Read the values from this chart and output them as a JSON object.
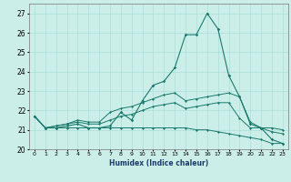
{
  "xlabel": "Humidex (Indice chaleur)",
  "x": [
    0,
    1,
    2,
    3,
    4,
    5,
    6,
    7,
    8,
    9,
    10,
    11,
    12,
    13,
    14,
    15,
    16,
    17,
    18,
    19,
    20,
    21,
    22,
    23
  ],
  "humidex_line": [
    21.7,
    21.1,
    21.1,
    21.2,
    21.3,
    21.1,
    21.1,
    21.2,
    21.9,
    21.5,
    22.5,
    23.3,
    23.5,
    24.2,
    25.9,
    25.9,
    27.0,
    26.2,
    23.8,
    22.7,
    21.3,
    21.1,
    20.5,
    20.3
  ],
  "tmax_line": [
    21.7,
    21.1,
    21.2,
    21.3,
    21.5,
    21.4,
    21.4,
    21.9,
    22.1,
    22.2,
    22.4,
    22.6,
    22.8,
    22.9,
    22.5,
    22.6,
    22.7,
    22.8,
    22.9,
    22.7,
    21.4,
    21.1,
    21.1,
    21.0
  ],
  "tmin_line": [
    21.7,
    21.1,
    21.1,
    21.1,
    21.1,
    21.1,
    21.1,
    21.1,
    21.1,
    21.1,
    21.1,
    21.1,
    21.1,
    21.1,
    21.1,
    21.0,
    21.0,
    20.9,
    20.8,
    20.7,
    20.6,
    20.5,
    20.3,
    20.3
  ],
  "tmean_line": [
    21.7,
    21.1,
    21.2,
    21.3,
    21.4,
    21.3,
    21.3,
    21.5,
    21.7,
    21.8,
    22.0,
    22.2,
    22.3,
    22.4,
    22.1,
    22.2,
    22.3,
    22.4,
    22.4,
    21.6,
    21.1,
    21.1,
    20.9,
    20.8
  ],
  "line_color": "#1a7a6e",
  "bg_color": "#cceee8",
  "grid_color": "#aaddd8",
  "ylim": [
    20,
    27.5
  ],
  "yticks": [
    20,
    21,
    22,
    23,
    24,
    25,
    26,
    27
  ],
  "xlim": [
    -0.5,
    23.5
  ]
}
